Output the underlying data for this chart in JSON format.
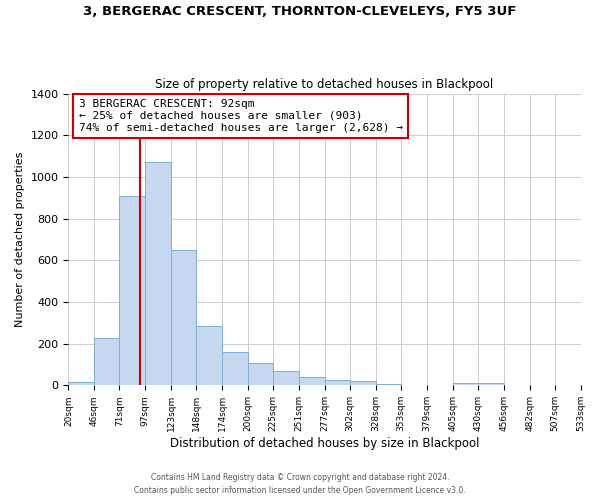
{
  "title": "3, BERGERAC CRESCENT, THORNTON-CLEVELEYS, FY5 3UF",
  "subtitle": "Size of property relative to detached houses in Blackpool",
  "xlabel": "Distribution of detached houses by size in Blackpool",
  "ylabel": "Number of detached properties",
  "bar_heights": [
    15,
    228,
    910,
    1070,
    650,
    285,
    158,
    107,
    70,
    40,
    25,
    20,
    8,
    3,
    0,
    10,
    0
  ],
  "bin_left": [
    20,
    46,
    71,
    97,
    123,
    148,
    174,
    200,
    225,
    251,
    277,
    302,
    328,
    353,
    379,
    405,
    456
  ],
  "bin_right": [
    46,
    71,
    97,
    123,
    148,
    174,
    200,
    225,
    251,
    277,
    302,
    328,
    353,
    379,
    405,
    456,
    482
  ],
  "tick_labels": [
    "20sqm",
    "46sqm",
    "71sqm",
    "97sqm",
    "123sqm",
    "148sqm",
    "174sqm",
    "200sqm",
    "225sqm",
    "251sqm",
    "277sqm",
    "302sqm",
    "328sqm",
    "353sqm",
    "379sqm",
    "405sqm",
    "430sqm",
    "456sqm",
    "482sqm",
    "507sqm",
    "533sqm"
  ],
  "tick_positions": [
    20,
    46,
    71,
    97,
    123,
    148,
    174,
    200,
    225,
    251,
    277,
    302,
    328,
    353,
    379,
    405,
    430,
    456,
    482,
    507,
    533
  ],
  "bar_color": "#c5d8f0",
  "bar_edge_color": "#7bafd4",
  "vline_x": 92,
  "vline_color": "#cc0000",
  "annotation_line1": "3 BERGERAC CRESCENT: 92sqm",
  "annotation_line2": "← 25% of detached houses are smaller (903)",
  "annotation_line3": "74% of semi-detached houses are larger (2,628) →",
  "annotation_box_color": "#ffffff",
  "annotation_box_edge": "#cc0000",
  "ylim": [
    0,
    1400
  ],
  "yticks": [
    0,
    200,
    400,
    600,
    800,
    1000,
    1200,
    1400
  ],
  "xlim_min": 20,
  "xlim_max": 533,
  "footer1": "Contains HM Land Registry data © Crown copyright and database right 2024.",
  "footer2": "Contains public sector information licensed under the Open Government Licence v3.0.",
  "background_color": "#ffffff",
  "grid_color": "#cccccc"
}
